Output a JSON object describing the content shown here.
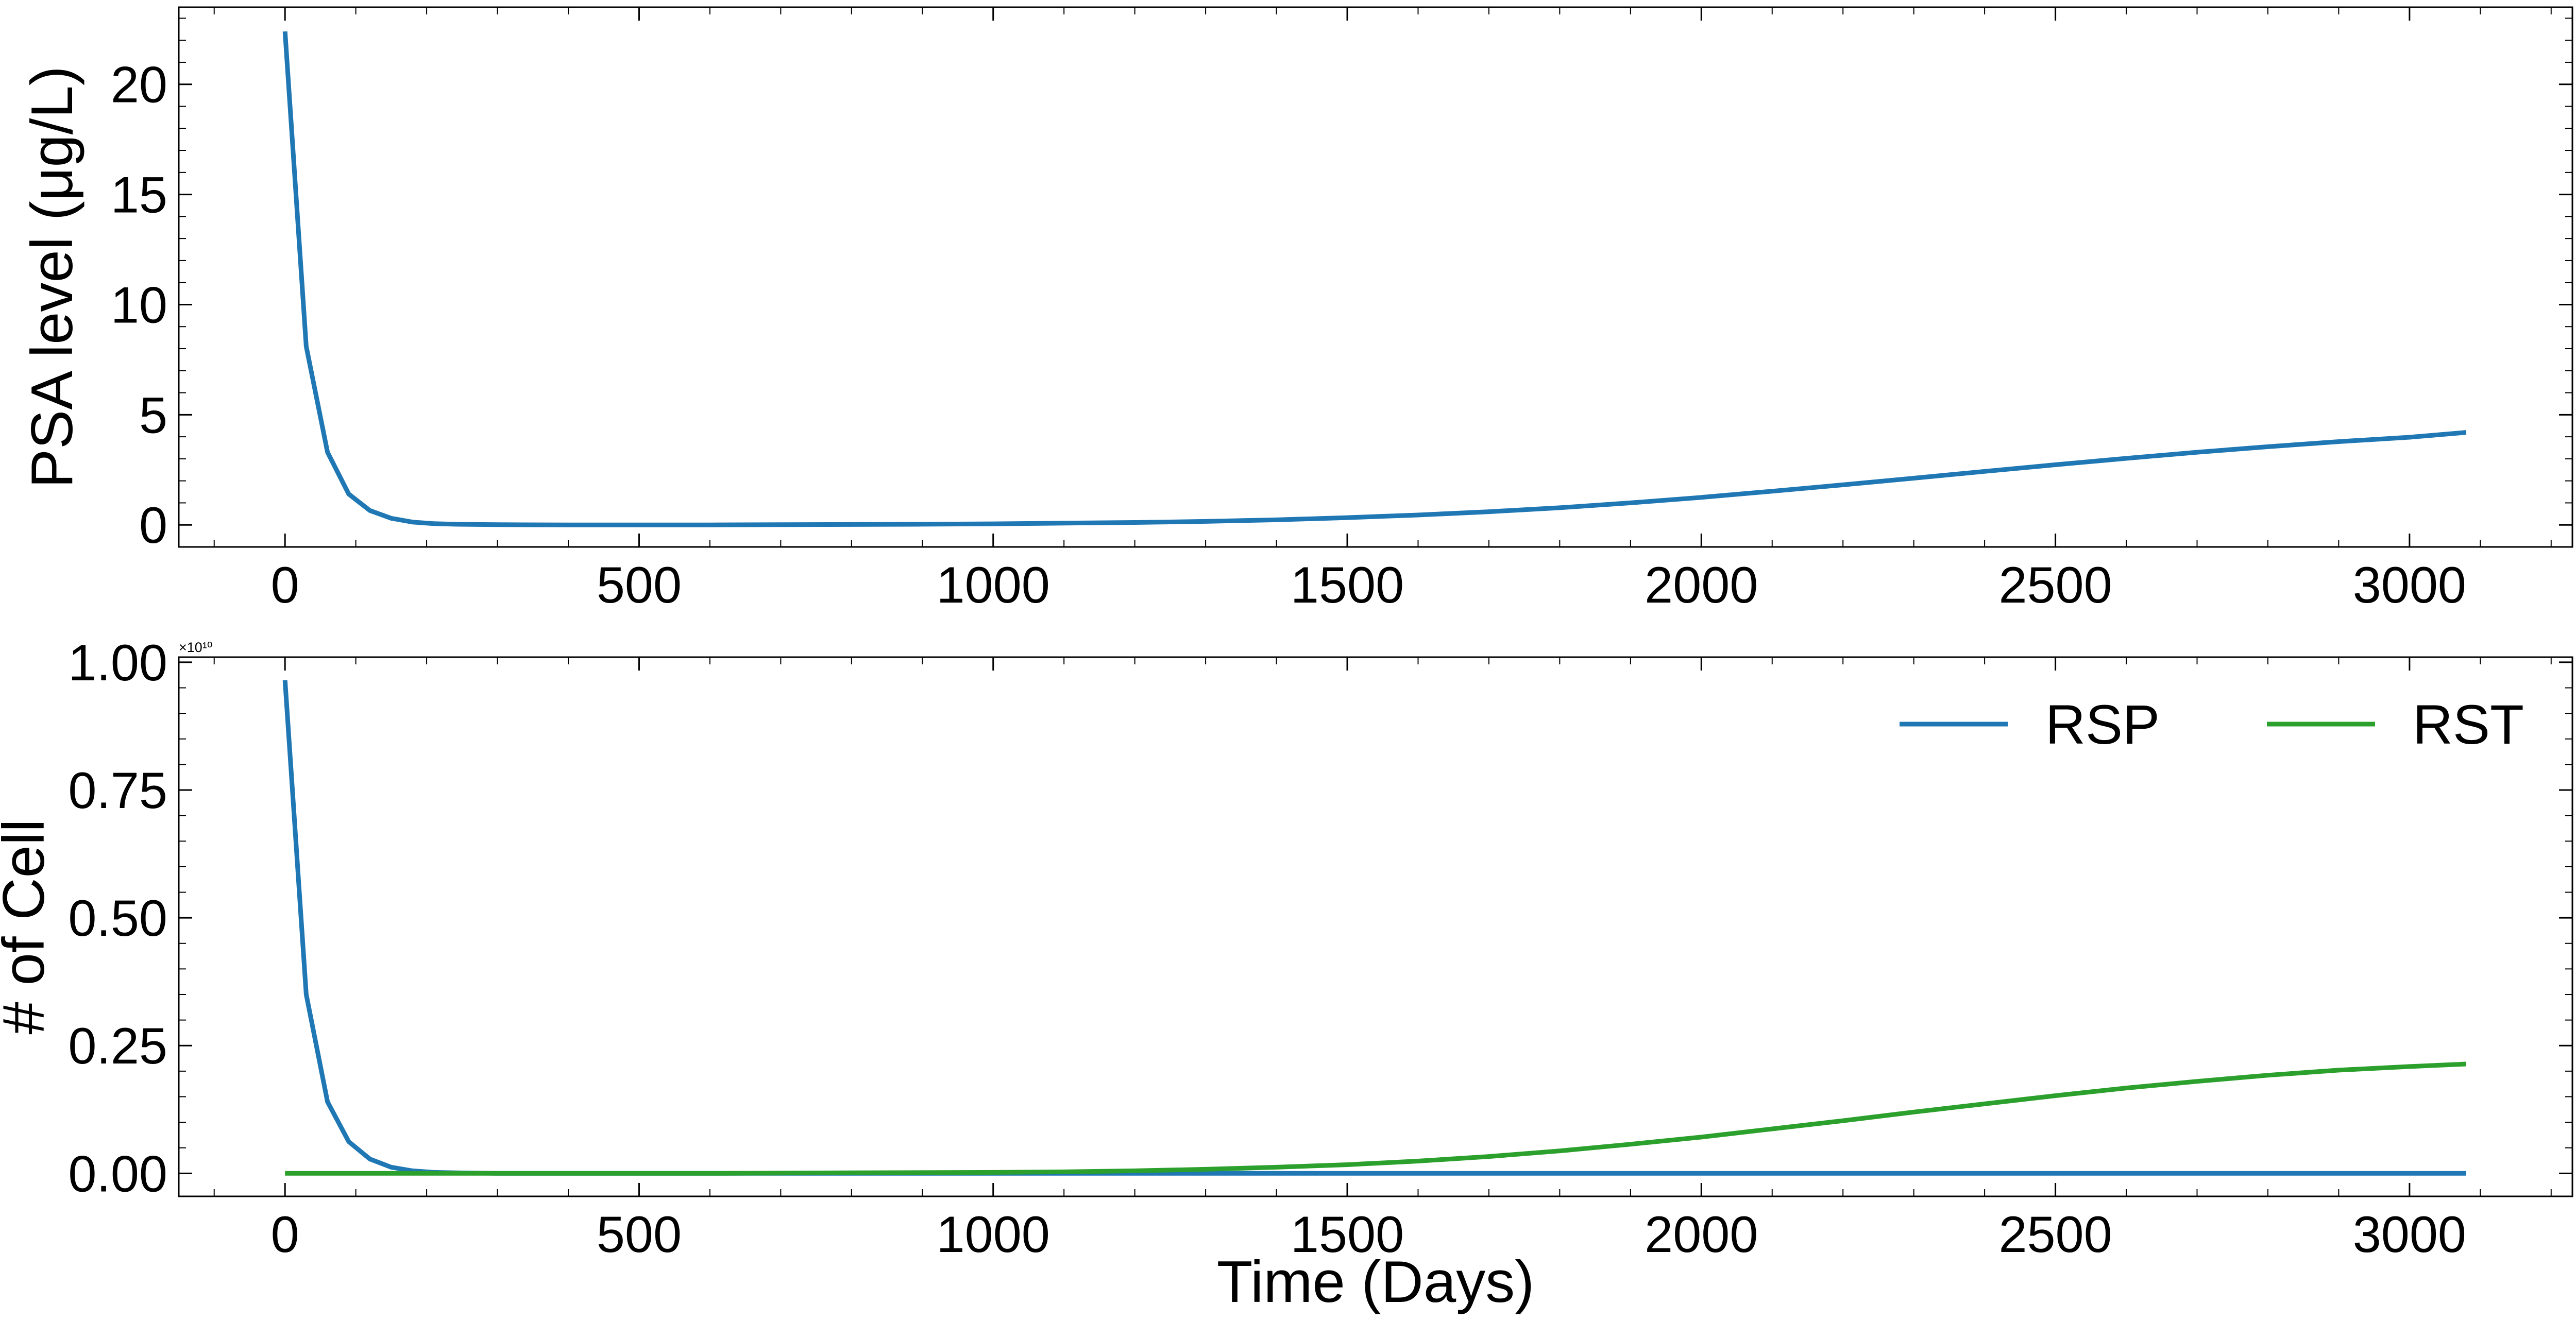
{
  "chart_data": [
    {
      "type": "line",
      "xlabel": "Time (Days)",
      "ylabel": "PSA level (μg/L)",
      "xlim": [
        -150,
        3230
      ],
      "ylim": [
        -1,
        23.5
      ],
      "xticks": [
        0,
        500,
        1000,
        1500,
        2000,
        2500,
        3000
      ],
      "xtick_labels": [
        "0",
        "500",
        "1000",
        "1500",
        "2000",
        "2500",
        "3000"
      ],
      "yticks": [
        0,
        5,
        10,
        15,
        20
      ],
      "ytick_labels": [
        "0",
        "5",
        "10",
        "15",
        "20"
      ],
      "grid": false,
      "legend": null,
      "series": [
        {
          "color": "#1f77b4",
          "x": [
            0,
            30,
            60,
            90,
            120,
            150,
            180,
            210,
            240,
            300,
            400,
            500,
            600,
            700,
            800,
            900,
            1000,
            1100,
            1200,
            1300,
            1400,
            1500,
            1600,
            1700,
            1800,
            1900,
            2000,
            2100,
            2200,
            2300,
            2400,
            2500,
            2600,
            2700,
            2800,
            2900,
            3000,
            3080
          ],
          "y": [
            22.4,
            8.1,
            3.3,
            1.4,
            0.65,
            0.3,
            0.13,
            0.06,
            0.03,
            0.01,
            0.0,
            0.0,
            0.0,
            0.01,
            0.02,
            0.03,
            0.05,
            0.08,
            0.11,
            0.16,
            0.23,
            0.33,
            0.45,
            0.6,
            0.78,
            1.0,
            1.25,
            1.53,
            1.82,
            2.12,
            2.43,
            2.73,
            3.02,
            3.3,
            3.55,
            3.78,
            3.98,
            4.2
          ]
        }
      ]
    },
    {
      "type": "line",
      "xlabel": "Time (Days)",
      "ylabel": "# of Cell",
      "y_offset_label": "×10¹⁰",
      "xlim": [
        -150,
        3230
      ],
      "ylim": [
        -0.045,
        1.01
      ],
      "xticks": [
        0,
        500,
        1000,
        1500,
        2000,
        2500,
        3000
      ],
      "xtick_labels": [
        "0",
        "500",
        "1000",
        "1500",
        "2000",
        "2500",
        "3000"
      ],
      "yticks": [
        0,
        0.25,
        0.5,
        0.75,
        1.0
      ],
      "ytick_labels": [
        "0.00",
        "0.25",
        "0.50",
        "0.75",
        "1.00"
      ],
      "grid": false,
      "legend": "top-right",
      "series": [
        {
          "name": "RSP",
          "color": "#1f77b4",
          "x": [
            0,
            30,
            60,
            90,
            120,
            150,
            180,
            210,
            240,
            300,
            400,
            500,
            1000,
            1500,
            2000,
            2500,
            3000,
            3080
          ],
          "y": [
            0.965,
            0.35,
            0.14,
            0.062,
            0.028,
            0.012,
            0.005,
            0.002,
            0.001,
            0.0,
            0.0,
            0.0,
            0.0,
            0.0,
            0.0,
            0.0,
            0.0,
            0.0
          ]
        },
        {
          "name": "RST",
          "color": "#2ca02c",
          "x": [
            0,
            200,
            400,
            600,
            800,
            1000,
            1100,
            1200,
            1300,
            1400,
            1500,
            1600,
            1700,
            1800,
            1900,
            2000,
            2100,
            2200,
            2300,
            2400,
            2500,
            2600,
            2700,
            2800,
            2900,
            3000,
            3080
          ],
          "y": [
            0.0,
            0.0,
            0.0,
            0.0,
            0.001,
            0.002,
            0.003,
            0.005,
            0.008,
            0.012,
            0.017,
            0.024,
            0.033,
            0.044,
            0.057,
            0.071,
            0.087,
            0.103,
            0.12,
            0.136,
            0.152,
            0.167,
            0.18,
            0.192,
            0.202,
            0.209,
            0.214
          ]
        }
      ]
    }
  ]
}
